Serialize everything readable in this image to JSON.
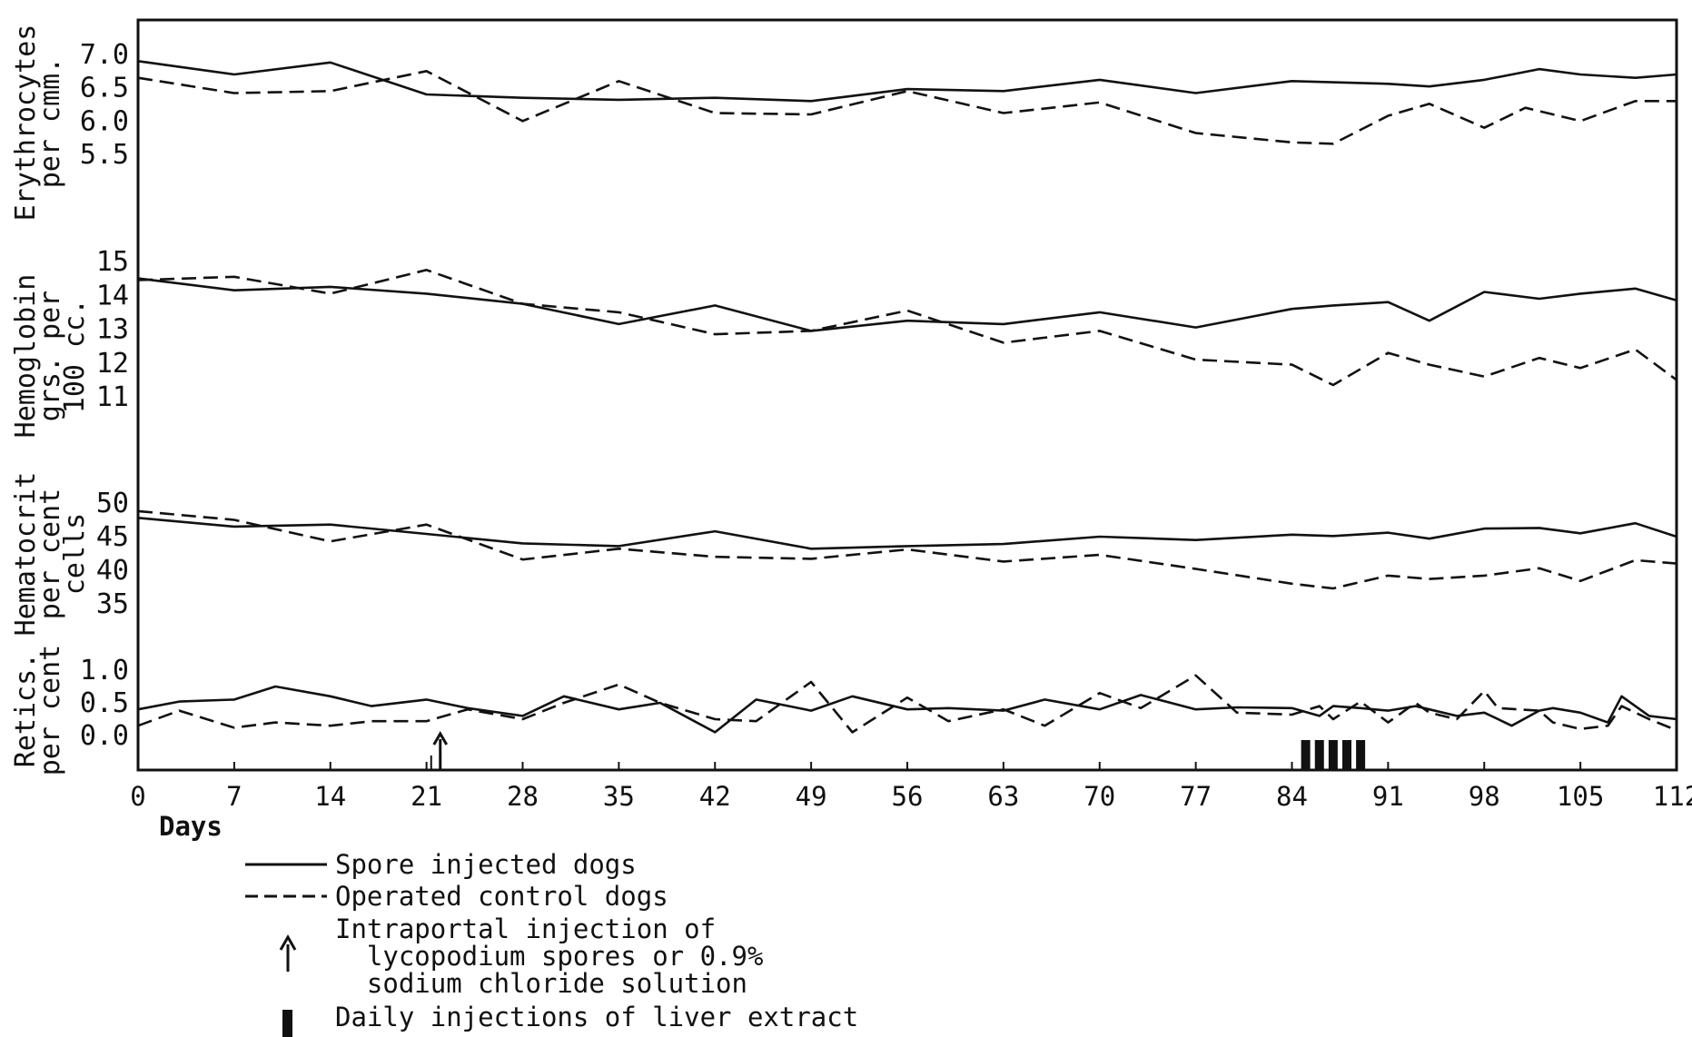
{
  "chart_data": {
    "type": "line",
    "x_axis": {
      "label": "Days",
      "range": [
        0,
        112
      ],
      "ticks": [
        0,
        7,
        14,
        21,
        28,
        35,
        42,
        49,
        56,
        63,
        70,
        77,
        84,
        91,
        98,
        105,
        112
      ]
    },
    "series_styles": [
      {
        "name": "Spore injected dogs",
        "line": "solid"
      },
      {
        "name": "Operated control dogs",
        "line": "dashed"
      }
    ],
    "panels": [
      {
        "id": "erythrocytes",
        "ylabel": [
          "Erythrocytes",
          "per cmm."
        ],
        "ticks": [
          "7.0",
          "6.5",
          "6.0",
          "5.5"
        ],
        "ylim": [
          5.5,
          7.0
        ],
        "series": [
          {
            "name": "Spore injected dogs",
            "x": [
              0,
              7,
              14,
              21,
              28,
              35,
              42,
              49,
              56,
              63,
              70,
              77,
              84,
              91,
              94,
              98,
              102,
              105,
              109,
              112
            ],
            "y": [
              6.9,
              6.7,
              6.88,
              6.4,
              6.35,
              6.32,
              6.35,
              6.3,
              6.48,
              6.45,
              6.62,
              6.42,
              6.6,
              6.56,
              6.52,
              6.62,
              6.78,
              6.7,
              6.65,
              6.7
            ]
          },
          {
            "name": "Operated control dogs",
            "x": [
              0,
              7,
              14,
              21,
              28,
              35,
              42,
              49,
              56,
              63,
              70,
              77,
              84,
              87,
              91,
              94,
              98,
              101,
              105,
              109,
              112
            ],
            "y": [
              6.65,
              6.42,
              6.45,
              6.75,
              6.0,
              6.6,
              6.12,
              6.1,
              6.45,
              6.12,
              6.28,
              5.82,
              5.68,
              5.66,
              6.08,
              6.26,
              5.9,
              6.2,
              6.0,
              6.3,
              6.3
            ]
          }
        ]
      },
      {
        "id": "hemoglobin",
        "ylabel": [
          "Hemoglobin",
          "grs. per",
          "100 cc."
        ],
        "ticks": [
          "15",
          "14",
          "13",
          "12",
          "11"
        ],
        "ylim": [
          11,
          15
        ],
        "series": [
          {
            "name": "Spore injected dogs",
            "x": [
              0,
              7,
              14,
              21,
              28,
              35,
              42,
              49,
              56,
              63,
              70,
              77,
              84,
              87,
              91,
              94,
              98,
              102,
              105,
              109,
              112
            ],
            "y": [
              14.5,
              14.15,
              14.25,
              14.05,
              13.75,
              13.15,
              13.7,
              12.95,
              13.25,
              13.15,
              13.5,
              13.05,
              13.6,
              13.7,
              13.8,
              13.25,
              14.1,
              13.9,
              14.05,
              14.2,
              13.85
            ]
          },
          {
            "name": "Operated control dogs",
            "x": [
              0,
              7,
              14,
              21,
              28,
              35,
              42,
              49,
              56,
              63,
              70,
              77,
              84,
              87,
              91,
              94,
              98,
              102,
              105,
              109,
              112
            ],
            "y": [
              14.45,
              14.55,
              14.05,
              14.75,
              13.75,
              13.5,
              12.85,
              12.95,
              13.55,
              12.6,
              12.95,
              12.1,
              11.95,
              11.35,
              12.3,
              11.95,
              11.6,
              12.15,
              11.85,
              12.4,
              11.5
            ]
          }
        ]
      },
      {
        "id": "hematocrit",
        "ylabel": [
          "Hematocrit",
          "per cent",
          "cells"
        ],
        "ticks": [
          "50",
          "45",
          "40",
          "35"
        ],
        "ylim": [
          35,
          50
        ],
        "series": [
          {
            "name": "Spore injected dogs",
            "x": [
              0,
              7,
              14,
              21,
              28,
              35,
              42,
              49,
              56,
              63,
              70,
              77,
              84,
              87,
              91,
              94,
              98,
              102,
              105,
              109,
              112
            ],
            "y": [
              47.8,
              46.5,
              46.8,
              45.4,
              44.0,
              43.6,
              45.8,
              43.2,
              43.6,
              43.9,
              45.0,
              44.5,
              45.3,
              45.1,
              45.6,
              44.7,
              46.2,
              46.3,
              45.5,
              47.0,
              45.0
            ]
          },
          {
            "name": "Operated control dogs",
            "x": [
              0,
              7,
              14,
              21,
              28,
              35,
              42,
              49,
              56,
              63,
              70,
              77,
              84,
              87,
              91,
              94,
              98,
              102,
              105,
              109,
              112
            ],
            "y": [
              48.8,
              47.5,
              44.3,
              46.8,
              41.6,
              43.2,
              42.0,
              41.7,
              43.1,
              41.3,
              42.3,
              40.2,
              38.0,
              37.3,
              39.2,
              38.7,
              39.2,
              40.3,
              38.4,
              41.5,
              41.0
            ]
          }
        ]
      },
      {
        "id": "retics",
        "ylabel": [
          "Retics.",
          "per cent"
        ],
        "ticks": [
          "1.0",
          "0.5",
          "0.0"
        ],
        "ylim": [
          0.0,
          1.0
        ],
        "series": [
          {
            "name": "Spore injected dogs",
            "x": [
              0,
              3,
              7,
              10,
              14,
              17,
              21,
              24,
              28,
              31,
              35,
              38,
              42,
              45,
              49,
              52,
              56,
              59,
              63,
              66,
              70,
              73,
              77,
              80,
              84,
              86,
              87,
              89,
              91,
              93,
              94,
              96,
              98,
              100,
              102,
              103,
              105,
              107,
              108,
              110,
              112
            ],
            "y": [
              0.4,
              0.52,
              0.55,
              0.75,
              0.6,
              0.45,
              0.55,
              0.42,
              0.3,
              0.6,
              0.4,
              0.5,
              0.05,
              0.55,
              0.38,
              0.6,
              0.4,
              0.42,
              0.38,
              0.55,
              0.4,
              0.62,
              0.4,
              0.43,
              0.42,
              0.3,
              0.45,
              0.42,
              0.38,
              0.45,
              0.4,
              0.3,
              0.35,
              0.15,
              0.38,
              0.42,
              0.35,
              0.2,
              0.6,
              0.3,
              0.25
            ]
          },
          {
            "name": "Operated control dogs",
            "x": [
              0,
              3,
              7,
              10,
              14,
              17,
              21,
              24,
              28,
              31,
              35,
              38,
              42,
              45,
              49,
              52,
              56,
              59,
              63,
              66,
              70,
              73,
              77,
              80,
              84,
              86,
              87,
              89,
              91,
              93,
              94,
              96,
              98,
              99,
              102,
              103,
              105,
              107,
              108,
              110,
              112
            ],
            "y": [
              0.15,
              0.38,
              0.12,
              0.2,
              0.15,
              0.22,
              0.22,
              0.4,
              0.25,
              0.5,
              0.78,
              0.5,
              0.25,
              0.22,
              0.82,
              0.05,
              0.58,
              0.22,
              0.4,
              0.15,
              0.65,
              0.42,
              0.92,
              0.35,
              0.32,
              0.45,
              0.25,
              0.52,
              0.2,
              0.5,
              0.35,
              0.25,
              0.68,
              0.42,
              0.38,
              0.2,
              0.1,
              0.15,
              0.45,
              0.25,
              0.08
            ]
          }
        ]
      }
    ],
    "markers": {
      "arrow_day": 22,
      "liver_extract_days": [
        85,
        86,
        87,
        88,
        89
      ]
    },
    "legend": {
      "solid": "Spore injected dogs",
      "dashed": "Operated control dogs",
      "arrow_lines": [
        "Intraportal injection of",
        "  lycopodium spores or 0.9%",
        "  sodium chloride solution"
      ],
      "bar": "Daily injections of liver extract"
    }
  }
}
